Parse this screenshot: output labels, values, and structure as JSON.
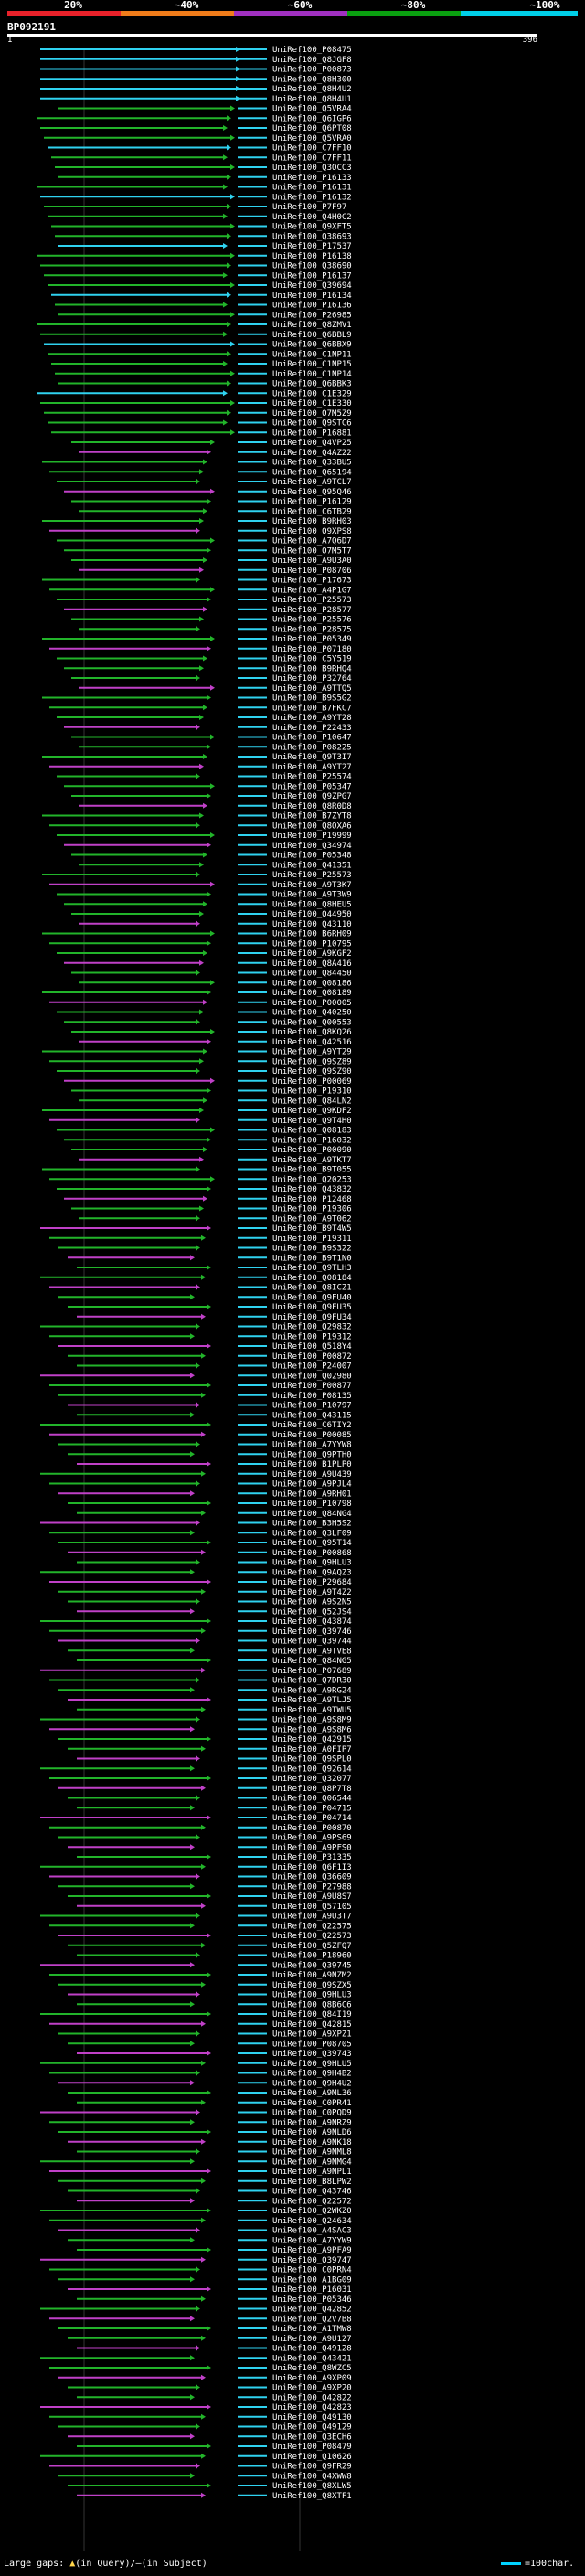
{
  "scale": {
    "labels": [
      "20%",
      "~40%",
      "~60%",
      "~80%",
      "~100%"
    ],
    "colors": [
      "#e8212a",
      "#f07c1a",
      "#a030c0",
      "#0aa010",
      "#00cfe8"
    ]
  },
  "query": {
    "name": "BP092191",
    "start": "1",
    "end": "396"
  },
  "footer": {
    "gaps_label": "Large gaps:",
    "in_query": "(in Query)",
    "in_subject": "(in Subject)",
    "scale_label": "=100char."
  },
  "hits": [
    "UniRef100_P08475",
    "UniRef100_Q8JGF8",
    "UniRef100_P00873",
    "UniRef100_Q8H300",
    "UniRef100_Q8H4U2",
    "UniRef100_Q8H4U1",
    "UniRef100_Q5VRA4",
    "UniRef100_Q6IGP6",
    "UniRef100_Q6PT08",
    "UniRef100_Q5VRA0",
    "UniRef100_C7FF10",
    "UniRef100_C7FF11",
    "UniRef100_Q3OCC3",
    "UniRef100_P16133",
    "UniRef100_P16131",
    "UniRef100_P16132",
    "UniRef100_P7F97",
    "UniRef100_Q4H0C2",
    "UniRef100_Q9XFT5",
    "UniRef100_Q38693",
    "UniRef100_P17537",
    "UniRef100_P16138",
    "UniRef100_Q38690",
    "UniRef100_P16137",
    "UniRef100_Q39694",
    "UniRef100_P16134",
    "UniRef100_P16136",
    "UniRef100_P26985",
    "UniRef100_Q8ZMV1",
    "UniRef100_Q6BBL9",
    "UniRef100_Q6BBX9",
    "UniRef100_C1NP11",
    "UniRef100_C1NP15",
    "UniRef100_C1NP14",
    "UniRef100_Q6BBK3",
    "UniRef100_C1E329",
    "UniRef100_C1E330",
    "UniRef100_O7M5Z9",
    "UniRef100_Q9STC6",
    "UniRef100_P16881",
    "UniRef100_Q4VP25",
    "UniRef100_Q4AZ22",
    "UniRef100_Q33BU5",
    "UniRef100_Q65194",
    "UniRef100_A9TCL7",
    "UniRef100_Q95Q46",
    "UniRef100_P16129",
    "UniRef100_C6TB29",
    "UniRef100_B9RH03",
    "UniRef100_O9XPS8",
    "UniRef100_A7Q6D7",
    "UniRef100_O7M5T7",
    "UniRef100_A9U3A0",
    "UniRef100_P08706",
    "UniRef100_P17673",
    "UniRef100_A4P1G7",
    "UniRef100_P25573",
    "UniRef100_P28577",
    "UniRef100_P25576",
    "UniRef100_P28575",
    "UniRef100_P05349",
    "UniRef100_P07180",
    "UniRef100_C5Y519",
    "UniRef100_B9RHQ4",
    "UniRef100_P32764",
    "UniRef100_A9TTQ5",
    "UniRef100_B9S5G2",
    "UniRef100_B7FKC7",
    "UniRef100_A9YT28",
    "UniRef100_P22433",
    "UniRef100_P10647",
    "UniRef100_P08225",
    "UniRef100_Q9T3I7",
    "UniRef100_A9YT27",
    "UniRef100_P25574",
    "UniRef100_P05347",
    "UniRef100_Q9ZPG7",
    "UniRef100_Q8R0D8",
    "UniRef100_B7ZYT8",
    "UniRef100_Q8OXA6",
    "UniRef100_P19999",
    "UniRef100_Q34974",
    "UniRef100_P05348",
    "UniRef100_Q41351",
    "UniRef100_P25573",
    "UniRef100_A9T3K7",
    "UniRef100_A9T3W9",
    "UniRef100_Q8HEU5",
    "UniRef100_Q44950",
    "UniRef100_Q43110",
    "UniRef100_B6RH09",
    "UniRef100_P10795",
    "UniRef100_A9KGF2",
    "UniRef100_Q8A416",
    "UniRef100_Q84450",
    "UniRef100_Q08186",
    "UniRef100_Q08189",
    "UniRef100_P00005",
    "UniRef100_Q40250",
    "UniRef100_Q00553",
    "UniRef100_Q8KQ26",
    "UniRef100_Q42516",
    "UniRef100_A9YT29",
    "UniRef100_Q9SZ89",
    "UniRef100_Q9SZ90",
    "UniRef100_P00069",
    "UniRef100_P19310",
    "UniRef100_Q84LN2",
    "UniRef100_Q9KDF2",
    "UniRef100_Q9T4H0",
    "UniRef100_Q08183",
    "UniRef100_P16032",
    "UniRef100_P00090",
    "UniRef100_A9TKT7",
    "UniRef100_B9T055",
    "UniRef100_Q20253",
    "UniRef100_Q43832",
    "UniRef100_P12468",
    "UniRef100_P19306",
    "UniRef100_A9T062",
    "UniRef100_B9T4W5",
    "UniRef100_P19311",
    "UniRef100_B9S322",
    "UniRef100_B9T1N0",
    "UniRef100_Q9TLH3",
    "UniRef100_Q08184",
    "UniRef100_Q8ICZ1",
    "UniRef100_Q9FU40",
    "UniRef100_Q9FU35",
    "UniRef100_Q9FU34",
    "UniRef100_Q29832",
    "UniRef100_P19312",
    "UniRef100_Q518Y4",
    "UniRef100_P00872",
    "UniRef100_P24007",
    "UniRef100_Q02980",
    "UniRef100_P00877",
    "UniRef100_P08135",
    "UniRef100_P10797",
    "UniRef100_Q43115",
    "UniRef100_C6TIY2",
    "UniRef100_P00085",
    "UniRef100_A7YYW8",
    "UniRef100_Q9PTH0",
    "UniRef100_B1PLP0",
    "UniRef100_A9U439",
    "UniRef100_A9PJL4",
    "UniRef100_A9RH01",
    "UniRef100_P10798",
    "UniRef100_Q84NG4",
    "UniRef100_B3H5S2",
    "UniRef100_Q3LF09",
    "UniRef100_Q95T14",
    "UniRef100_P00868",
    "UniRef100_Q9HLU3",
    "UniRef100_Q9AQZ3",
    "UniRef100_P29684",
    "UniRef100_A9T4Z2",
    "UniRef100_A9S2N5",
    "UniRef100_Q52JS4",
    "UniRef100_Q43874",
    "UniRef100_Q39746",
    "UniRef100_Q39744",
    "UniRef100_A9TVE8",
    "UniRef100_Q84NG5",
    "UniRef100_P07689",
    "UniRef100_Q7DR30",
    "UniRef100_A9RG24",
    "UniRef100_A9TLJ5",
    "UniRef100_A9TWU5",
    "UniRef100_A9S8M9",
    "UniRef100_A9S8M6",
    "UniRef100_Q42915",
    "UniRef100_A0FIP7",
    "UniRef100_Q9SPL0",
    "UniRef100_Q92614",
    "UniRef100_Q32077",
    "UniRef100_Q8P7T8",
    "UniRef100_Q06544",
    "UniRef100_P04715",
    "UniRef100_P04714",
    "UniRef100_P00870",
    "UniRef100_A9PS69",
    "UniRef100_A9PFS0",
    "UniRef100_P31335",
    "UniRef100_Q6F1I3",
    "UniRef100_Q36609",
    "UniRef100_P27988",
    "UniRef100_A9U8S7",
    "UniRef100_Q57105",
    "UniRef100_A9U3T7",
    "UniRef100_Q22575",
    "UniRef100_Q22573",
    "UniRef100_Q5ZFQ7",
    "UniRef100_P18960",
    "UniRef100_Q39745",
    "UniRef100_A9NZM2",
    "UniRef100_Q9SZX5",
    "UniRef100_Q9HLU3",
    "UniRef100_Q8B6C6",
    "UniRef100_Q84I19",
    "UniRef100_Q42815",
    "UniRef100_A9XPZ1",
    "UniRef100_P08705",
    "UniRef100_Q39743",
    "UniRef100_Q9HLU5",
    "UniRef100_Q9H4B2",
    "UniRef100_Q9H4U2",
    "UniRef100_A9ML36",
    "UniRef100_C0PR41",
    "UniRef100_C0PQD9",
    "UniRef100_A9NRZ9",
    "UniRef100_A9NLD6",
    "UniRef100_A9NK18",
    "UniRef100_A9NML8",
    "UniRef100_A9NMG4",
    "UniRef100_A9NPL1",
    "UniRef100_B8LPW2",
    "UniRef100_Q43746",
    "UniRef100_Q22572",
    "UniRef100_Q2WKZ0",
    "UniRef100_Q24634",
    "UniRef100_A4SAC3",
    "UniRef100_A7YYW9",
    "UniRef100_A9PFA9",
    "UniRef100_Q39747",
    "UniRef100_C0PRN4",
    "UniRef100_A1BG09",
    "UniRef100_P16031",
    "UniRef100_P05346",
    "UniRef100_Q42852",
    "UniRef100_Q2V7B8",
    "UniRef100_A1TMW8",
    "UniRef100_A9U127",
    "UniRef100_Q49128",
    "UniRef100_Q43421",
    "UniRef100_Q8WZC5",
    "UniRef100_A9XP09",
    "UniRef100_A9XP20",
    "UniRef100_Q42822",
    "UniRef100_Q42823",
    "UniRef100_Q49130",
    "UniRef100_Q49129",
    "UniRef100_Q3ECH6",
    "UniRef100_P08479",
    "UniRef100_Q10626",
    "UniRef100_Q9FR29",
    "UniRef100_Q4XWW8",
    "UniRef100_Q8XLW5",
    "UniRef100_Q8XTF1"
  ]
}
